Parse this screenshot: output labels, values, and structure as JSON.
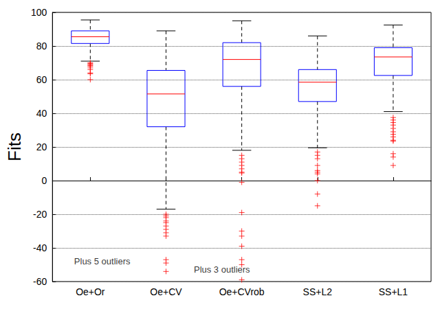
{
  "chart_data": {
    "type": "boxplot",
    "ylabel": "Fits",
    "categories": [
      "Oe+Or",
      "Oe+CV",
      "Oe+CVrob",
      "SS+L2",
      "SS+L1"
    ],
    "boxes": [
      {
        "whisker_low": 71,
        "q1": 81.5,
        "median": 85.5,
        "q3": 89,
        "whisker_high": 95.5,
        "outliers": [
          70,
          69.5,
          69,
          68.5,
          68,
          67,
          66,
          64,
          63.5,
          60
        ]
      },
      {
        "whisker_low": -17,
        "q1": 32,
        "median": 51.5,
        "q3": 65.5,
        "whisker_high": 89,
        "outliers": [
          -20,
          -21,
          -22,
          -24,
          -25,
          -27,
          -29,
          -31,
          -33,
          -47,
          -49,
          -54
        ]
      },
      {
        "whisker_low": 18,
        "q1": 56,
        "median": 72,
        "q3": 82,
        "whisker_high": 95,
        "outliers": [
          15,
          13,
          11,
          9,
          7,
          5,
          4.5,
          -1,
          -19,
          -30,
          -33,
          -39,
          -47,
          -50,
          -59
        ]
      },
      {
        "whisker_low": 19.5,
        "q1": 47,
        "median": 58.5,
        "q3": 66,
        "whisker_high": 86,
        "outliers": [
          17,
          15,
          13,
          9,
          6,
          5,
          4,
          0,
          -8,
          -15
        ]
      },
      {
        "whisker_low": 41,
        "q1": 62.5,
        "median": 73.5,
        "q3": 79,
        "whisker_high": 92.5,
        "outliers": [
          37.5,
          36,
          34.5,
          33,
          31,
          29,
          27.5,
          26,
          24,
          23.5,
          16,
          14,
          9
        ]
      }
    ],
    "marker": "+",
    "annotations": [
      {
        "text": "Plus 5 outliers",
        "x": "Oe+CV",
        "y": -48
      },
      {
        "text": "Plus 3 outliers",
        "x": "Oe+CVrob",
        "y": -53
      }
    ],
    "ylim": [
      -60,
      100
    ],
    "yticks": [
      -60,
      -40,
      -20,
      0,
      20,
      40,
      60,
      80,
      100
    ],
    "grid": true
  }
}
